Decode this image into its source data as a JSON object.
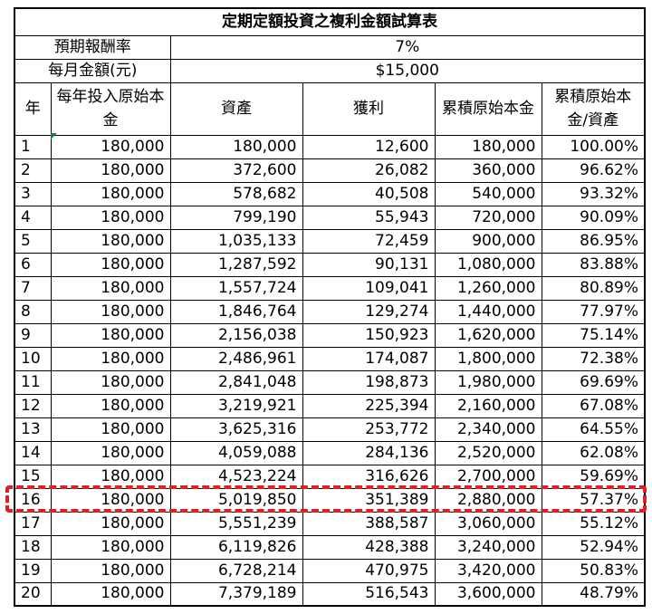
{
  "title": "定期定額投資之複利金額試算表",
  "params": [
    {
      "label": "預期報酬率",
      "value": "7%"
    },
    {
      "label": "每月金額(元)",
      "value": "$15,000"
    }
  ],
  "columns": [
    "年",
    "每年投入原始本金",
    "資產",
    "獲利",
    "累積原始本金",
    "累積原始本金/資產"
  ],
  "rows": [
    [
      "1",
      "180,000",
      "180,000",
      "12,600",
      "180,000",
      "100.00%"
    ],
    [
      "2",
      "180,000",
      "372,600",
      "26,082",
      "360,000",
      "96.62%"
    ],
    [
      "3",
      "180,000",
      "578,682",
      "40,508",
      "540,000",
      "93.32%"
    ],
    [
      "4",
      "180,000",
      "799,190",
      "55,943",
      "720,000",
      "90.09%"
    ],
    [
      "5",
      "180,000",
      "1,035,133",
      "72,459",
      "900,000",
      "86.95%"
    ],
    [
      "6",
      "180,000",
      "1,287,592",
      "90,131",
      "1,080,000",
      "83.88%"
    ],
    [
      "7",
      "180,000",
      "1,557,724",
      "109,041",
      "1,260,000",
      "80.89%"
    ],
    [
      "8",
      "180,000",
      "1,846,764",
      "129,274",
      "1,440,000",
      "77.97%"
    ],
    [
      "9",
      "180,000",
      "2,156,038",
      "150,923",
      "1,620,000",
      "75.14%"
    ],
    [
      "10",
      "180,000",
      "2,486,961",
      "174,087",
      "1,800,000",
      "72.38%"
    ],
    [
      "11",
      "180,000",
      "2,841,048",
      "198,873",
      "1,980,000",
      "69.69%"
    ],
    [
      "12",
      "180,000",
      "3,219,921",
      "225,394",
      "2,160,000",
      "67.08%"
    ],
    [
      "13",
      "180,000",
      "3,625,316",
      "253,772",
      "2,340,000",
      "64.55%"
    ],
    [
      "14",
      "180,000",
      "4,059,088",
      "284,136",
      "2,520,000",
      "62.08%"
    ],
    [
      "15",
      "180,000",
      "4,523,224",
      "316,626",
      "2,700,000",
      "59.69%"
    ],
    [
      "16",
      "180,000",
      "5,019,850",
      "351,389",
      "2,880,000",
      "57.37%"
    ],
    [
      "17",
      "180,000",
      "5,551,239",
      "388,587",
      "3,060,000",
      "55.12%"
    ],
    [
      "18",
      "180,000",
      "6,119,826",
      "428,388",
      "3,240,000",
      "52.94%"
    ],
    [
      "19",
      "180,000",
      "6,728,214",
      "470,975",
      "3,420,000",
      "50.83%"
    ],
    [
      "20",
      "180,000",
      "7,379,189",
      "516,543",
      "3,600,000",
      "48.79%"
    ]
  ],
  "highlight_row_year": "16",
  "colors": {
    "highlight_border": "#e02020",
    "grid": "#000000",
    "comment_marker": "#1f7a3a"
  }
}
